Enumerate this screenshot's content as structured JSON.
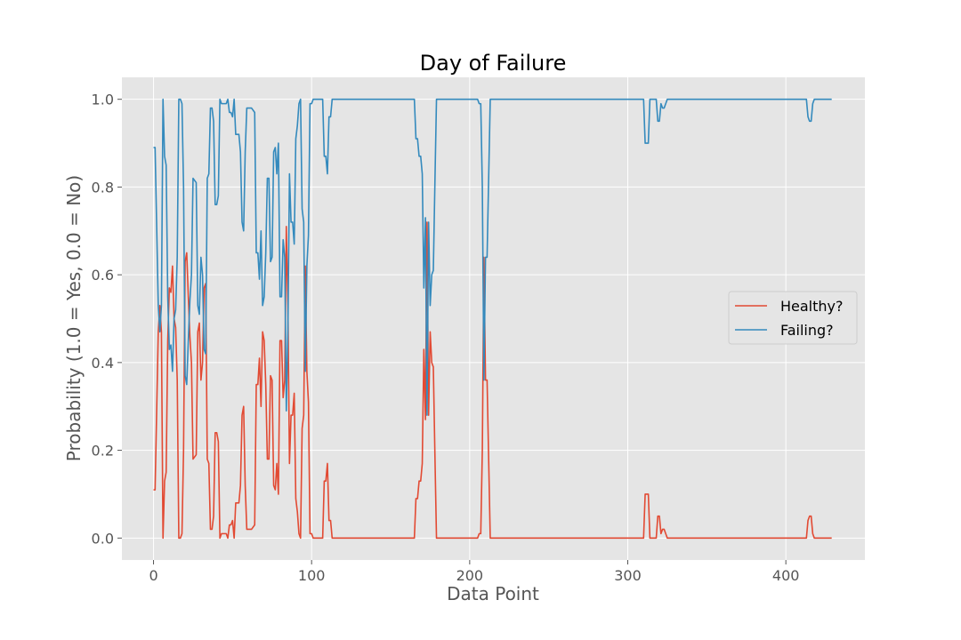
{
  "chart_data": {
    "type": "line",
    "title": "Day of Failure",
    "xlabel": "Data Point",
    "ylabel": "Probability (1.0 = Yes, 0.0 = No)",
    "xlim": [
      -20,
      450
    ],
    "ylim": [
      -0.05,
      1.05
    ],
    "xticks": [
      0,
      100,
      200,
      300,
      400
    ],
    "yticks": [
      0.0,
      0.2,
      0.4,
      0.6,
      0.8,
      1.0
    ],
    "xtick_labels": [
      "0",
      "100",
      "200",
      "300",
      "400"
    ],
    "ytick_labels": [
      "0.0",
      "0.2",
      "0.4",
      "0.6",
      "0.8",
      "1.0"
    ],
    "grid": true,
    "legend_position": "center-right",
    "colors": {
      "background": "#e5e5e5",
      "grid": "#ffffff",
      "healthy": "#e24a33",
      "failing": "#348abd"
    },
    "series": [
      {
        "name": "Healthy?",
        "color": "#e24a33",
        "points": [
          [
            0,
            0.11
          ],
          [
            1,
            0.11
          ],
          [
            3,
            0.47
          ],
          [
            4,
            0.53
          ],
          [
            5,
            0.47
          ],
          [
            6,
            0.0
          ],
          [
            7,
            0.13
          ],
          [
            8,
            0.15
          ],
          [
            9,
            0.45
          ],
          [
            10,
            0.57
          ],
          [
            11,
            0.56
          ],
          [
            12,
            0.62
          ],
          [
            13,
            0.5
          ],
          [
            14,
            0.48
          ],
          [
            15,
            0.36
          ],
          [
            16,
            0.0
          ],
          [
            17,
            0.0
          ],
          [
            18,
            0.01
          ],
          [
            19,
            0.2
          ],
          [
            20,
            0.63
          ],
          [
            21,
            0.65
          ],
          [
            22,
            0.55
          ],
          [
            23,
            0.46
          ],
          [
            24,
            0.4
          ],
          [
            25,
            0.18
          ],
          [
            27,
            0.19
          ],
          [
            28,
            0.47
          ],
          [
            29,
            0.49
          ],
          [
            30,
            0.36
          ],
          [
            31,
            0.4
          ],
          [
            32,
            0.57
          ],
          [
            33,
            0.58
          ],
          [
            34,
            0.18
          ],
          [
            35,
            0.17
          ],
          [
            36,
            0.02
          ],
          [
            37,
            0.02
          ],
          [
            38,
            0.05
          ],
          [
            39,
            0.24
          ],
          [
            40,
            0.24
          ],
          [
            41,
            0.22
          ],
          [
            42,
            0.0
          ],
          [
            43,
            0.01
          ],
          [
            44,
            0.01
          ],
          [
            46,
            0.01
          ],
          [
            47,
            0.0
          ],
          [
            48,
            0.03
          ],
          [
            49,
            0.03
          ],
          [
            50,
            0.04
          ],
          [
            51,
            0.0
          ],
          [
            52,
            0.08
          ],
          [
            54,
            0.08
          ],
          [
            55,
            0.12
          ],
          [
            56,
            0.28
          ],
          [
            57,
            0.3
          ],
          [
            58,
            0.12
          ],
          [
            59,
            0.02
          ],
          [
            60,
            0.02
          ],
          [
            61,
            0.02
          ],
          [
            62,
            0.02
          ],
          [
            64,
            0.03
          ],
          [
            65,
            0.35
          ],
          [
            66,
            0.35
          ],
          [
            67,
            0.41
          ],
          [
            68,
            0.3
          ],
          [
            69,
            0.47
          ],
          [
            70,
            0.45
          ],
          [
            71,
            0.35
          ],
          [
            72,
            0.18
          ],
          [
            73,
            0.18
          ],
          [
            74,
            0.37
          ],
          [
            75,
            0.36
          ],
          [
            76,
            0.12
          ],
          [
            77,
            0.11
          ],
          [
            78,
            0.17
          ],
          [
            79,
            0.1
          ],
          [
            80,
            0.45
          ],
          [
            81,
            0.45
          ],
          [
            82,
            0.32
          ],
          [
            83,
            0.36
          ],
          [
            84,
            0.71
          ],
          [
            85,
            0.53
          ],
          [
            86,
            0.17
          ],
          [
            87,
            0.28
          ],
          [
            88,
            0.28
          ],
          [
            89,
            0.33
          ],
          [
            90,
            0.09
          ],
          [
            91,
            0.06
          ],
          [
            92,
            0.01
          ],
          [
            93,
            0.0
          ],
          [
            94,
            0.25
          ],
          [
            95,
            0.28
          ],
          [
            96,
            0.62
          ],
          [
            97,
            0.38
          ],
          [
            98,
            0.31
          ],
          [
            99,
            0.01
          ],
          [
            100,
            0.01
          ],
          [
            101,
            0.0
          ],
          [
            107,
            0.0
          ],
          [
            108,
            0.13
          ],
          [
            109,
            0.13
          ],
          [
            110,
            0.17
          ],
          [
            111,
            0.04
          ],
          [
            112,
            0.04
          ],
          [
            113,
            0.0
          ],
          [
            165,
            0.0
          ],
          [
            166,
            0.09
          ],
          [
            167,
            0.09
          ],
          [
            168,
            0.13
          ],
          [
            169,
            0.13
          ],
          [
            170,
            0.17
          ],
          [
            171,
            0.43
          ],
          [
            172,
            0.27
          ],
          [
            173,
            0.72
          ],
          [
            174,
            0.28
          ],
          [
            175,
            0.47
          ],
          [
            176,
            0.4
          ],
          [
            177,
            0.39
          ],
          [
            178,
            0.19
          ],
          [
            179,
            0.0
          ],
          [
            180,
            0.0
          ],
          [
            183,
            0.0
          ],
          [
            184,
            0.0
          ],
          [
            186,
            0.0
          ],
          [
            187,
            0.0
          ],
          [
            192,
            0.0
          ],
          [
            197,
            0.0
          ],
          [
            198,
            0.0
          ],
          [
            205,
            0.0
          ],
          [
            206,
            0.01
          ],
          [
            207,
            0.01
          ],
          [
            208,
            0.2
          ],
          [
            209,
            0.64
          ],
          [
            210,
            0.36
          ],
          [
            211,
            0.36
          ],
          [
            213,
            0.0
          ],
          [
            310,
            0.0
          ],
          [
            311,
            0.1
          ],
          [
            313,
            0.1
          ],
          [
            314,
            0.0
          ],
          [
            318,
            0.0
          ],
          [
            319,
            0.05
          ],
          [
            320,
            0.05
          ],
          [
            321,
            0.01
          ],
          [
            322,
            0.02
          ],
          [
            323,
            0.02
          ],
          [
            324,
            0.01
          ],
          [
            325,
            0.0
          ],
          [
            347,
            0.0
          ],
          [
            348,
            0.0
          ],
          [
            349,
            0.0
          ],
          [
            392,
            0.0
          ],
          [
            393,
            0.0
          ],
          [
            394,
            0.0
          ],
          [
            413,
            0.0
          ],
          [
            414,
            0.04
          ],
          [
            415,
            0.05
          ],
          [
            416,
            0.05
          ],
          [
            417,
            0.01
          ],
          [
            418,
            0.0
          ],
          [
            429,
            0.0
          ]
        ]
      },
      {
        "name": "Failing?",
        "color": "#348abd",
        "points": [
          [
            0,
            0.89
          ],
          [
            1,
            0.89
          ],
          [
            3,
            0.53
          ],
          [
            4,
            0.47
          ],
          [
            5,
            0.53
          ],
          [
            6,
            1.0
          ],
          [
            7,
            0.87
          ],
          [
            8,
            0.85
          ],
          [
            9,
            0.55
          ],
          [
            10,
            0.43
          ],
          [
            11,
            0.44
          ],
          [
            12,
            0.38
          ],
          [
            13,
            0.5
          ],
          [
            14,
            0.52
          ],
          [
            15,
            0.64
          ],
          [
            16,
            1.0
          ],
          [
            17,
            1.0
          ],
          [
            18,
            0.99
          ],
          [
            19,
            0.8
          ],
          [
            20,
            0.37
          ],
          [
            21,
            0.35
          ],
          [
            22,
            0.45
          ],
          [
            23,
            0.54
          ],
          [
            24,
            0.6
          ],
          [
            25,
            0.82
          ],
          [
            27,
            0.81
          ],
          [
            28,
            0.53
          ],
          [
            29,
            0.51
          ],
          [
            30,
            0.64
          ],
          [
            31,
            0.6
          ],
          [
            32,
            0.43
          ],
          [
            33,
            0.42
          ],
          [
            34,
            0.82
          ],
          [
            35,
            0.83
          ],
          [
            36,
            0.98
          ],
          [
            37,
            0.98
          ],
          [
            38,
            0.95
          ],
          [
            39,
            0.76
          ],
          [
            40,
            0.76
          ],
          [
            41,
            0.78
          ],
          [
            42,
            1.0
          ],
          [
            43,
            0.99
          ],
          [
            44,
            0.99
          ],
          [
            46,
            0.99
          ],
          [
            47,
            1.0
          ],
          [
            48,
            0.97
          ],
          [
            49,
            0.97
          ],
          [
            50,
            0.96
          ],
          [
            51,
            1.0
          ],
          [
            52,
            0.92
          ],
          [
            54,
            0.92
          ],
          [
            55,
            0.88
          ],
          [
            56,
            0.72
          ],
          [
            57,
            0.7
          ],
          [
            58,
            0.88
          ],
          [
            59,
            0.98
          ],
          [
            60,
            0.98
          ],
          [
            61,
            0.98
          ],
          [
            62,
            0.98
          ],
          [
            64,
            0.97
          ],
          [
            65,
            0.65
          ],
          [
            66,
            0.65
          ],
          [
            67,
            0.59
          ],
          [
            68,
            0.7
          ],
          [
            69,
            0.53
          ],
          [
            70,
            0.55
          ],
          [
            71,
            0.65
          ],
          [
            72,
            0.82
          ],
          [
            73,
            0.82
          ],
          [
            74,
            0.63
          ],
          [
            75,
            0.64
          ],
          [
            76,
            0.88
          ],
          [
            77,
            0.89
          ],
          [
            78,
            0.83
          ],
          [
            79,
            0.9
          ],
          [
            80,
            0.55
          ],
          [
            81,
            0.55
          ],
          [
            82,
            0.68
          ],
          [
            83,
            0.64
          ],
          [
            84,
            0.29
          ],
          [
            85,
            0.47
          ],
          [
            86,
            0.83
          ],
          [
            87,
            0.72
          ],
          [
            88,
            0.72
          ],
          [
            89,
            0.67
          ],
          [
            90,
            0.91
          ],
          [
            91,
            0.94
          ],
          [
            92,
            0.99
          ],
          [
            93,
            1.0
          ],
          [
            94,
            0.75
          ],
          [
            95,
            0.72
          ],
          [
            96,
            0.38
          ],
          [
            97,
            0.62
          ],
          [
            98,
            0.69
          ],
          [
            99,
            0.99
          ],
          [
            100,
            0.99
          ],
          [
            101,
            1.0
          ],
          [
            107,
            1.0
          ],
          [
            108,
            0.87
          ],
          [
            109,
            0.87
          ],
          [
            110,
            0.83
          ],
          [
            111,
            0.96
          ],
          [
            112,
            0.96
          ],
          [
            113,
            1.0
          ],
          [
            165,
            1.0
          ],
          [
            166,
            0.91
          ],
          [
            167,
            0.91
          ],
          [
            168,
            0.87
          ],
          [
            169,
            0.87
          ],
          [
            170,
            0.83
          ],
          [
            171,
            0.57
          ],
          [
            172,
            0.73
          ],
          [
            173,
            0.28
          ],
          [
            174,
            0.72
          ],
          [
            175,
            0.53
          ],
          [
            176,
            0.6
          ],
          [
            177,
            0.61
          ],
          [
            178,
            0.81
          ],
          [
            179,
            1.0
          ],
          [
            180,
            1.0
          ],
          [
            183,
            1.0
          ],
          [
            184,
            1.0
          ],
          [
            186,
            1.0
          ],
          [
            187,
            1.0
          ],
          [
            192,
            1.0
          ],
          [
            197,
            1.0
          ],
          [
            198,
            1.0
          ],
          [
            205,
            1.0
          ],
          [
            206,
            0.99
          ],
          [
            207,
            0.99
          ],
          [
            208,
            0.8
          ],
          [
            209,
            0.36
          ],
          [
            210,
            0.64
          ],
          [
            211,
            0.64
          ],
          [
            213,
            1.0
          ],
          [
            310,
            1.0
          ],
          [
            311,
            0.9
          ],
          [
            313,
            0.9
          ],
          [
            314,
            1.0
          ],
          [
            318,
            1.0
          ],
          [
            319,
            0.95
          ],
          [
            320,
            0.95
          ],
          [
            321,
            0.99
          ],
          [
            322,
            0.98
          ],
          [
            323,
            0.98
          ],
          [
            324,
            0.99
          ],
          [
            325,
            1.0
          ],
          [
            347,
            1.0
          ],
          [
            348,
            1.0
          ],
          [
            349,
            1.0
          ],
          [
            392,
            1.0
          ],
          [
            393,
            1.0
          ],
          [
            394,
            1.0
          ],
          [
            413,
            1.0
          ],
          [
            414,
            0.96
          ],
          [
            415,
            0.95
          ],
          [
            416,
            0.95
          ],
          [
            417,
            0.99
          ],
          [
            418,
            1.0
          ],
          [
            429,
            1.0
          ]
        ]
      }
    ]
  }
}
